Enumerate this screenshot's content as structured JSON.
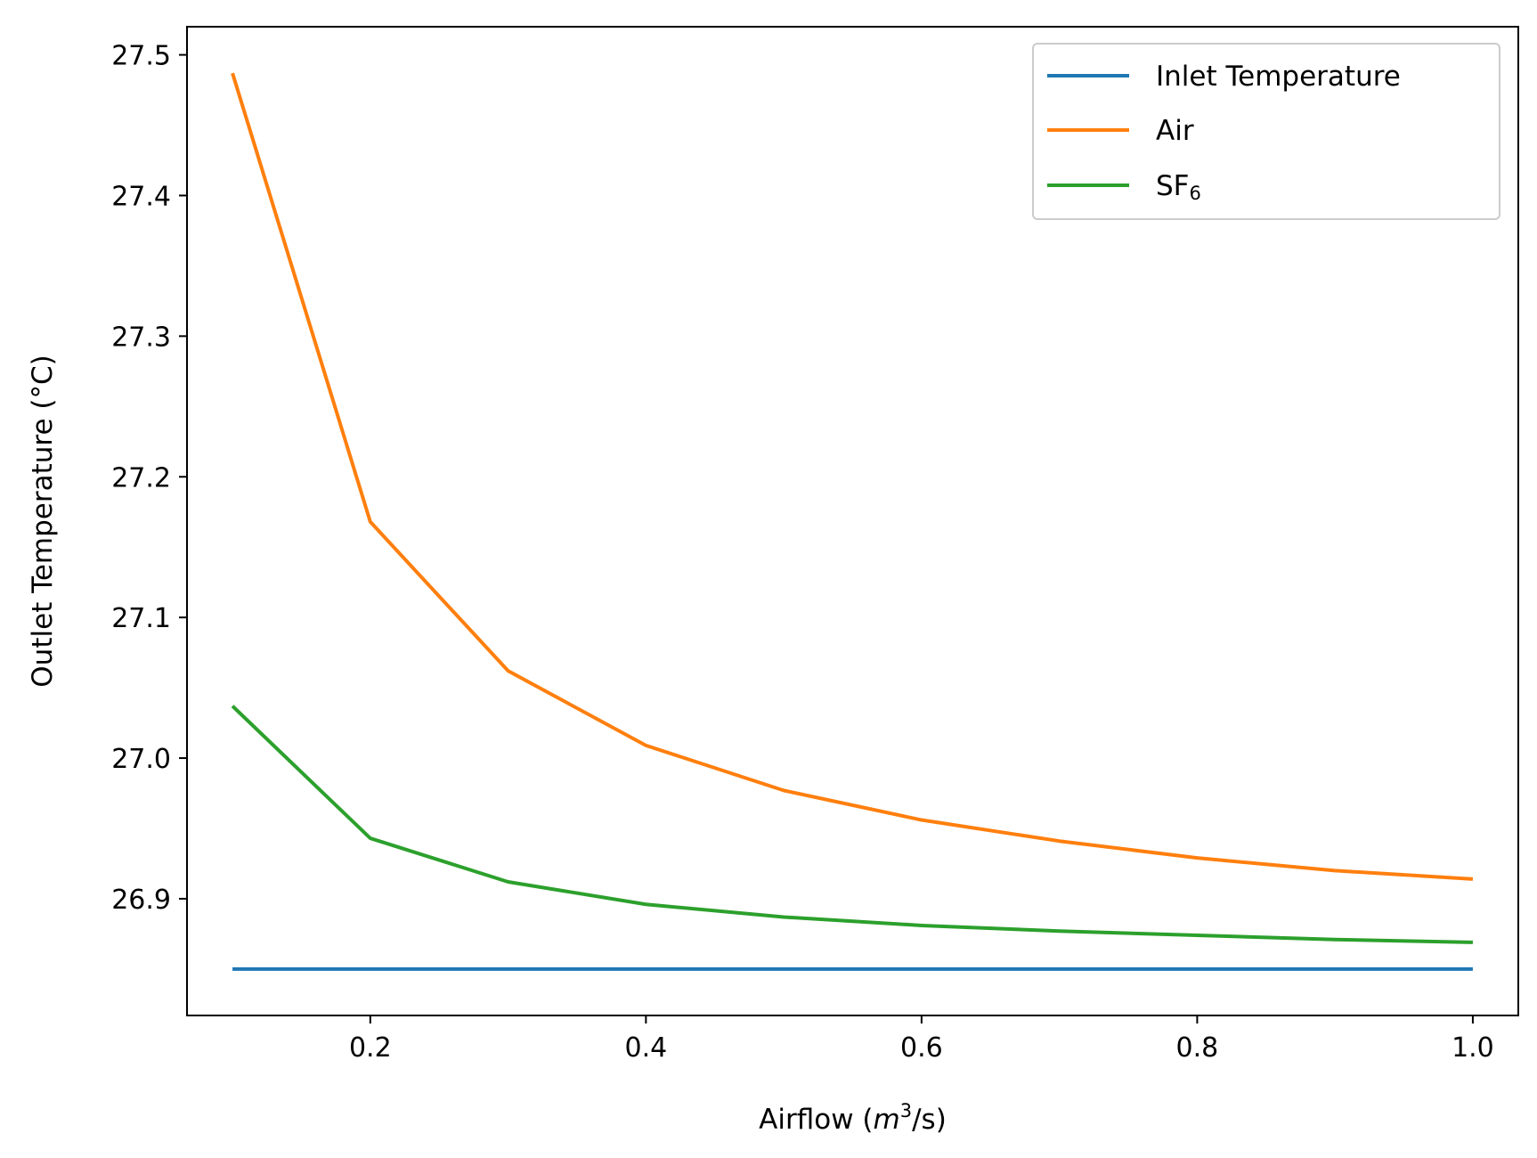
{
  "chart_data": {
    "type": "line",
    "title": "",
    "xlabel": {
      "prefix": "Airflow (",
      "var": "m",
      "sup": "3",
      "suffix": "/s)"
    },
    "ylabel": "Outlet Temperature (°C)",
    "xlim": [
      0.067,
      1.033
    ],
    "ylim": [
      26.817,
      27.52
    ],
    "xticks": [
      0.2,
      0.4,
      0.6,
      0.8,
      1.0
    ],
    "xtick_labels": [
      "0.2",
      "0.4",
      "0.6",
      "0.8",
      "1.0"
    ],
    "yticks": [
      26.9,
      27.0,
      27.1,
      27.2,
      27.3,
      27.4,
      27.5
    ],
    "ytick_labels": [
      "26.9",
      "27.0",
      "27.1",
      "27.2",
      "27.3",
      "27.4",
      "27.5"
    ],
    "grid": false,
    "legend_position": "top-right",
    "x": [
      0.1,
      0.2,
      0.3,
      0.4,
      0.5,
      0.6,
      0.7,
      0.8,
      0.9,
      1.0
    ],
    "series": [
      {
        "name": "Inlet Temperature",
        "color": "#1f77b4",
        "values": [
          26.85,
          26.85,
          26.85,
          26.85,
          26.85,
          26.85,
          26.85,
          26.85,
          26.85,
          26.85
        ]
      },
      {
        "name": "Air",
        "color": "#ff7f0e",
        "values": [
          27.487,
          27.168,
          27.062,
          27.009,
          26.977,
          26.956,
          26.941,
          26.929,
          26.92,
          26.914
        ]
      },
      {
        "name": "SF",
        "name_sub": "6",
        "color": "#2ca02c",
        "values": [
          27.037,
          26.943,
          26.912,
          26.896,
          26.887,
          26.881,
          26.877,
          26.874,
          26.871,
          26.869
        ]
      }
    ]
  }
}
